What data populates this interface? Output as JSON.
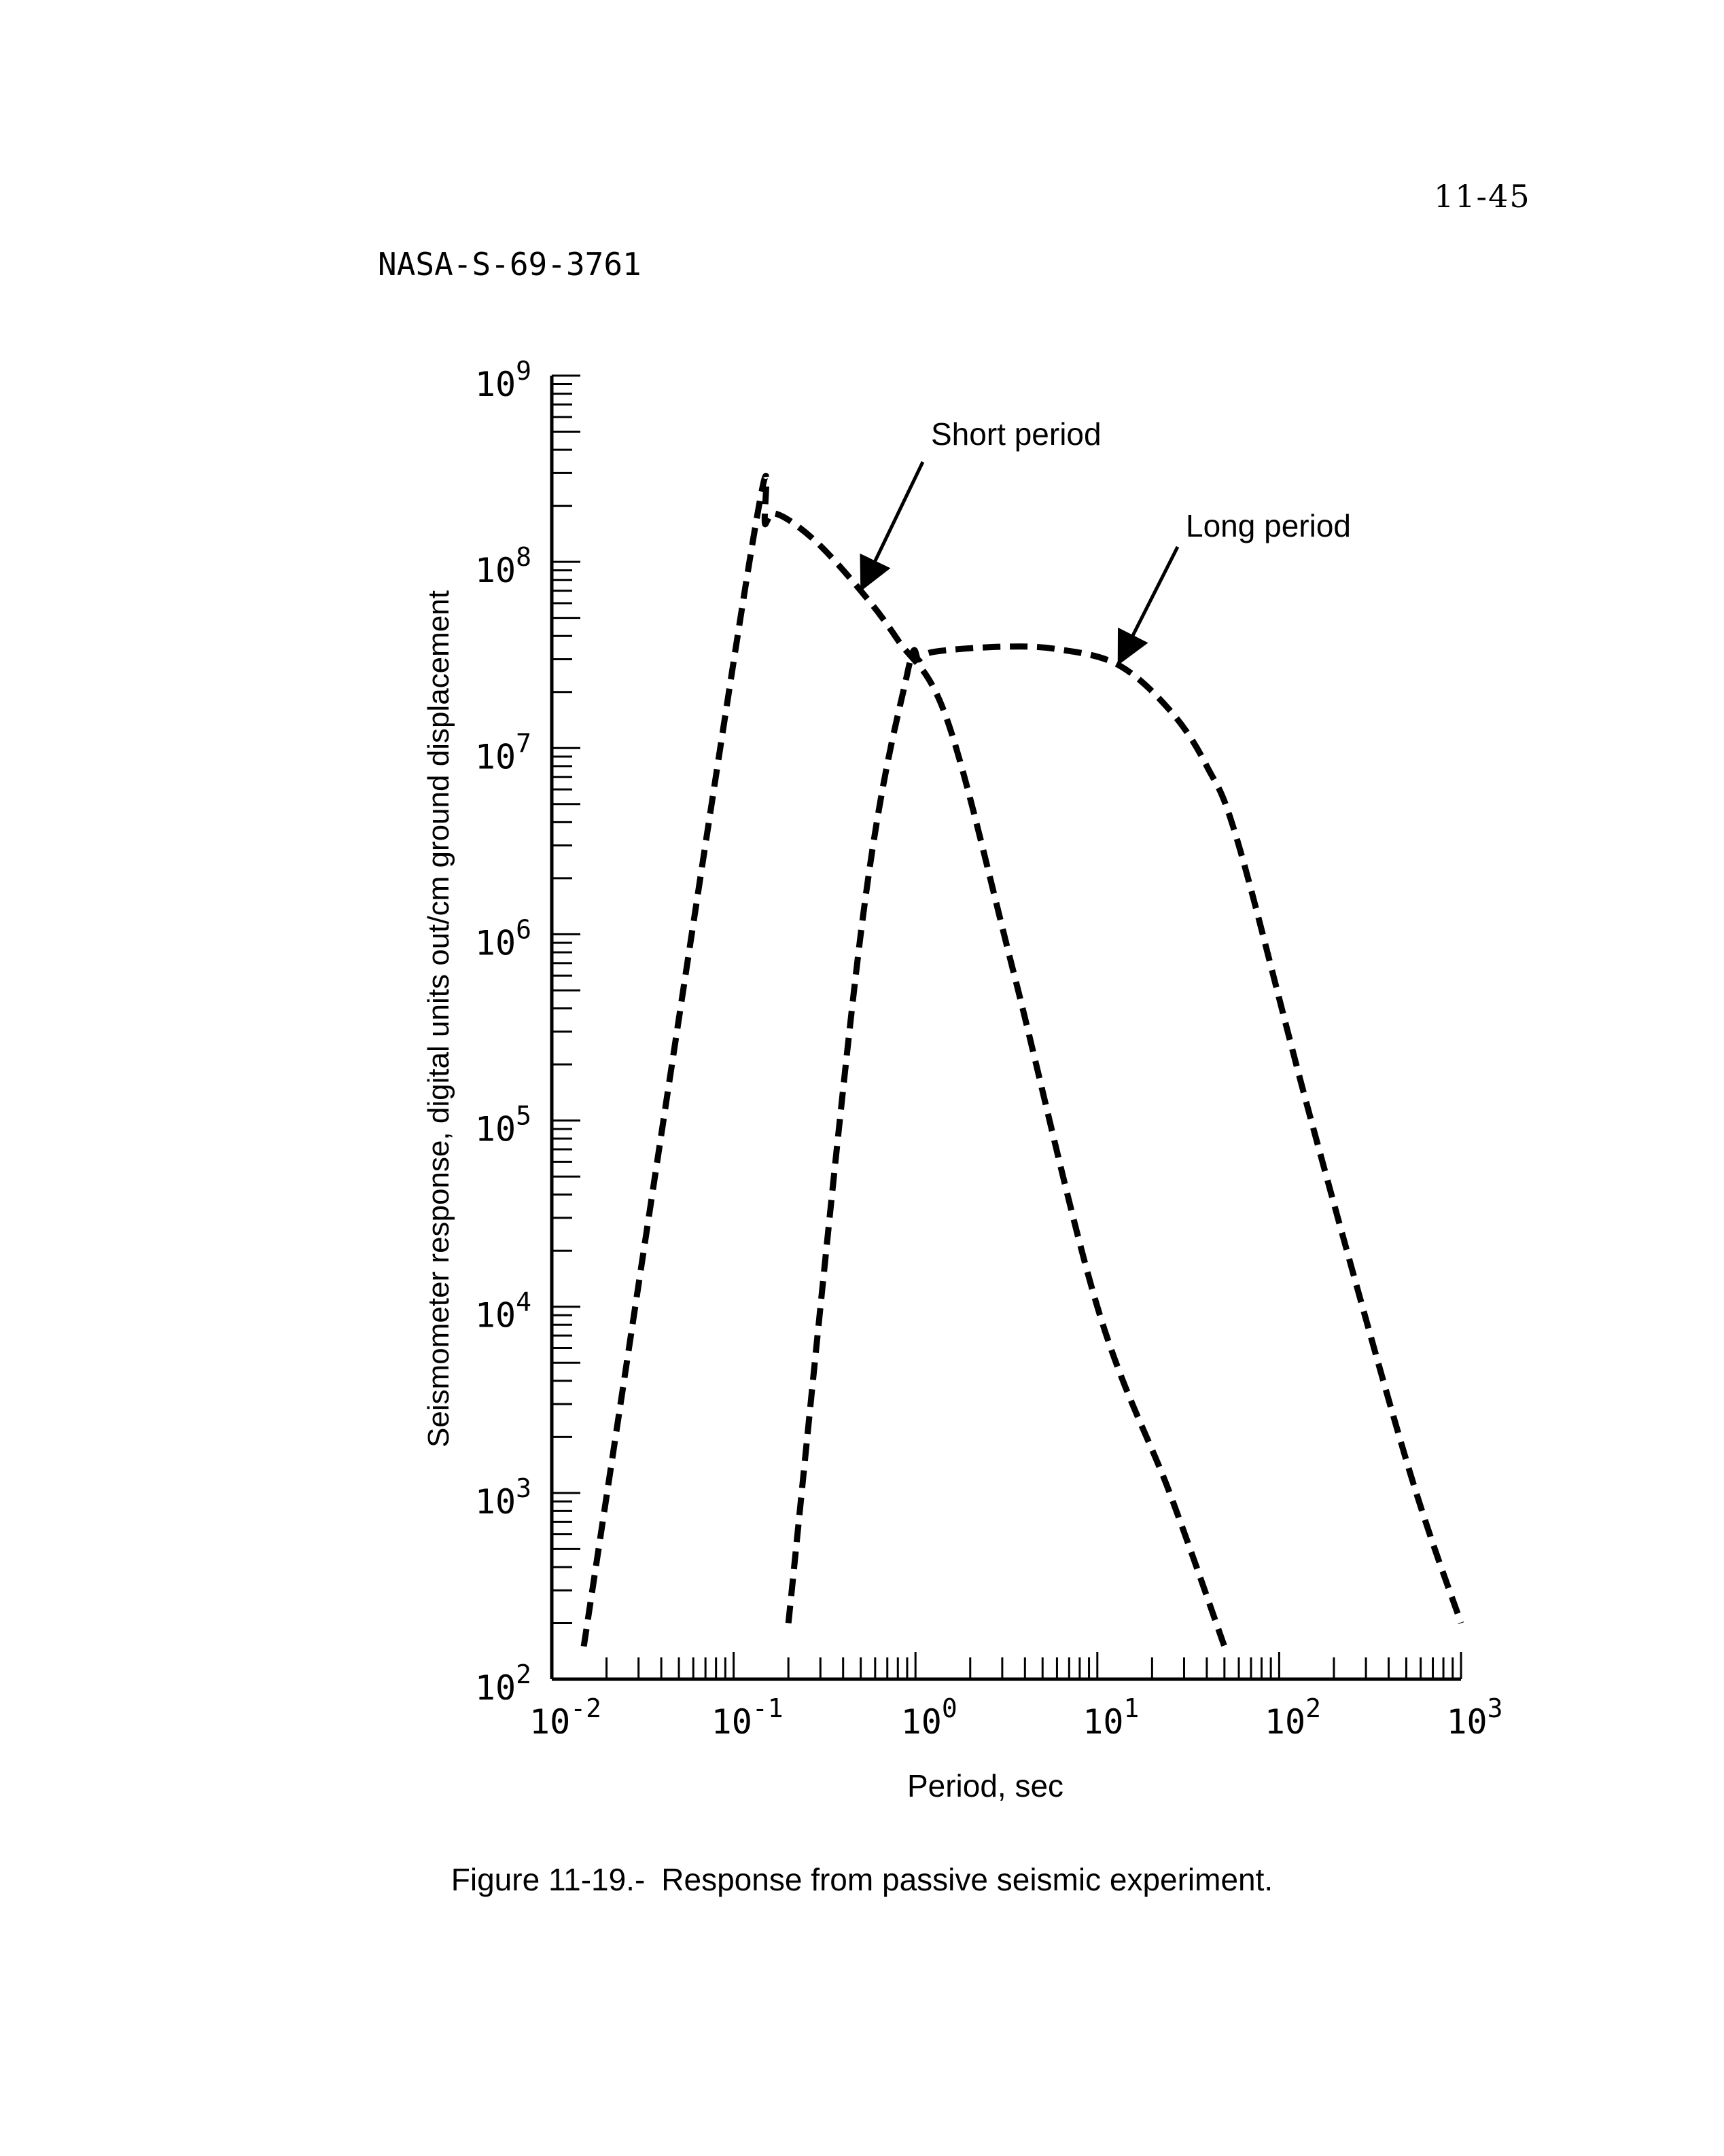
{
  "page": {
    "page_number": "11-45",
    "document_id": "NASA-S-69-3761",
    "caption_label": "Figure 11-19.-",
    "caption_text": "Response from passive seismic experiment."
  },
  "chart_data": {
    "type": "line",
    "title": "",
    "xlabel": "Period, sec",
    "ylabel": "Seismometer response, digital units out/cm ground displacement",
    "x_scale": "log",
    "y_scale": "log",
    "xlim": [
      0.01,
      1000
    ],
    "ylim": [
      100,
      1000000000
    ],
    "grid": false,
    "line_style": "dashed",
    "x_ticks": [
      {
        "base": "10",
        "exp": "-2",
        "value": 0.01
      },
      {
        "base": "10",
        "exp": "-1",
        "value": 0.1
      },
      {
        "base": "10",
        "exp": "0",
        "value": 1
      },
      {
        "base": "10",
        "exp": "1",
        "value": 10
      },
      {
        "base": "10",
        "exp": "2",
        "value": 100
      },
      {
        "base": "10",
        "exp": "3",
        "value": 1000
      }
    ],
    "y_ticks": [
      {
        "base": "10",
        "exp": "2",
        "value": 100
      },
      {
        "base": "10",
        "exp": "3",
        "value": 1000
      },
      {
        "base": "10",
        "exp": "4",
        "value": 10000
      },
      {
        "base": "10",
        "exp": "5",
        "value": 100000
      },
      {
        "base": "10",
        "exp": "6",
        "value": 1000000
      },
      {
        "base": "10",
        "exp": "7",
        "value": 10000000
      },
      {
        "base": "10",
        "exp": "8",
        "value": 100000000
      },
      {
        "base": "10",
        "exp": "9",
        "value": 1000000000
      }
    ],
    "series": [
      {
        "name": "Short period",
        "x": [
          0.015,
          0.12,
          0.15,
          0.175,
          0.28,
          0.5,
          0.8,
          1.5,
          3.5,
          10,
          25,
          50
        ],
        "y": [
          150,
          90000000,
          160000000,
          180000000,
          130000000,
          70000000,
          38000000,
          14000000,
          600000,
          10000,
          1000,
          150
        ]
      },
      {
        "name": "Long period",
        "x": [
          0.2,
          0.5,
          0.9,
          1.05,
          1.3,
          3,
          6,
          13,
          25,
          40,
          60,
          150,
          500,
          1000
        ],
        "y": [
          200,
          1000000,
          25000000,
          30000000,
          33000000,
          35000000,
          34000000,
          28000000,
          16000000,
          8000000,
          3000000,
          100000,
          1500,
          200
        ]
      }
    ],
    "annotations": [
      {
        "text": "Short period",
        "series": 0,
        "x": 0.5,
        "y": 70000000
      },
      {
        "text": "Long period",
        "series": 1,
        "x": 13,
        "y": 28000000
      }
    ]
  }
}
